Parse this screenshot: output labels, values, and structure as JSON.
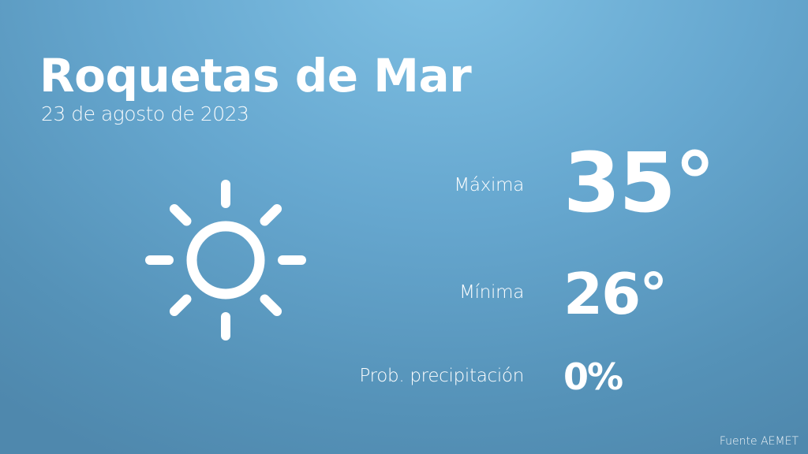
{
  "city": "Roquetas de Mar",
  "date": "23 de agosto de 2023",
  "weather_icon": "sun-icon",
  "max": {
    "label": "Máxima",
    "value": "35°"
  },
  "min": {
    "label": "Mínima",
    "value": "26°"
  },
  "precip": {
    "label": "Prob. precipitación",
    "value": "0%"
  },
  "source": "Fuente AEMET",
  "colors": {
    "background_top": "#80c1e4",
    "background_bottom": "#4f88ad",
    "text": "#ffffff"
  }
}
